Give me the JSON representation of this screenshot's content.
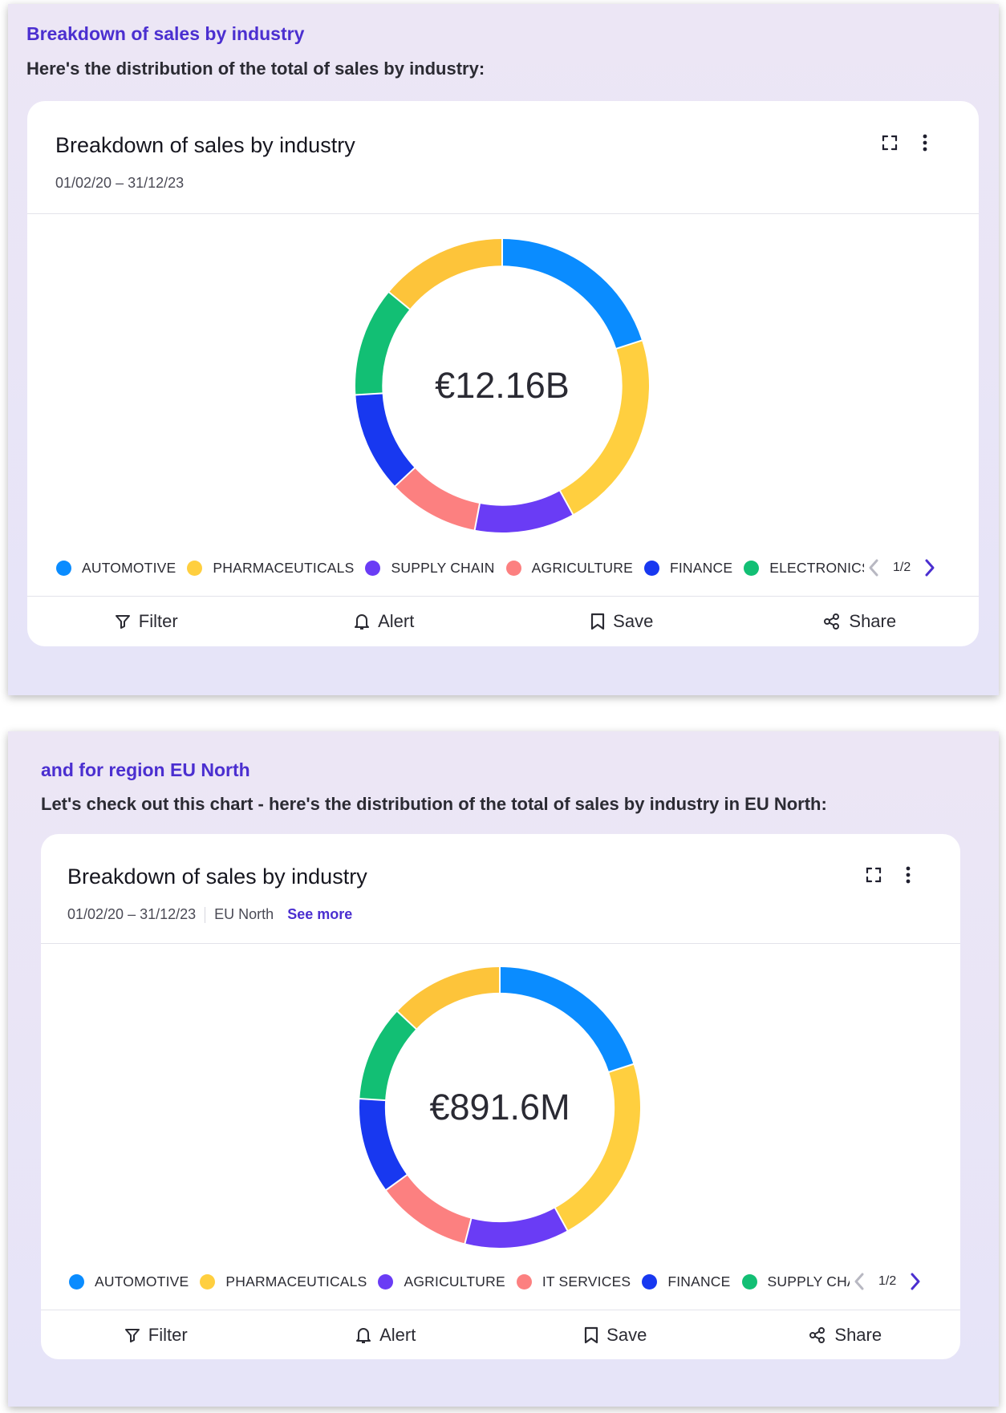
{
  "messages": [
    {
      "heading": "Breakdown of sales by industry",
      "subheading": "Here's the distribution of the total of sales by industry:",
      "card": {
        "title": "Breakdown of sales by industry",
        "date_range": "01/02/20 – 31/12/23",
        "region": "",
        "see_more": "",
        "total_label": "€12.16B",
        "legend": [
          {
            "label": "AUTOMOTIVE",
            "color": "#0a8cff"
          },
          {
            "label": "PHARMACEUTICALS",
            "color": "#ffcf3f"
          },
          {
            "label": "SUPPLY CHAIN",
            "color": "#6a3cf5"
          },
          {
            "label": "AGRICULTURE",
            "color": "#fc8080"
          },
          {
            "label": "FINANCE",
            "color": "#1838f0"
          },
          {
            "label": "ELECTRONICS",
            "color": "#12bf74"
          }
        ],
        "pager": "1/2",
        "actions": {
          "filter": "Filter",
          "alert": "Alert",
          "save": "Save",
          "share": "Share"
        }
      },
      "chart_data": {
        "type": "pie",
        "donut": true,
        "center_label": "€12.16B",
        "slices": [
          {
            "label": "AUTOMOTIVE",
            "value": 20,
            "color": "#0a8cff"
          },
          {
            "label": "PHARMACEUTICALS",
            "value": 22,
            "color": "#ffcf3f"
          },
          {
            "label": "SUPPLY CHAIN",
            "value": 11,
            "color": "#6a3cf5"
          },
          {
            "label": "AGRICULTURE",
            "value": 10,
            "color": "#fc8080"
          },
          {
            "label": "FINANCE",
            "value": 11,
            "color": "#1838f0"
          },
          {
            "label": "ELECTRONICS",
            "value": 12,
            "color": "#12bf74"
          },
          {
            "label": "",
            "value": 14,
            "color": "#fdc43a"
          }
        ]
      }
    },
    {
      "heading": "and for region EU North",
      "subheading": "Let's check out this chart - here's the distribution of the total of sales by industry in EU North:",
      "card": {
        "title": "Breakdown of sales by industry",
        "date_range": "01/02/20 – 31/12/23",
        "region": "EU North",
        "see_more": "See more",
        "total_label": "€891.6M",
        "legend": [
          {
            "label": "AUTOMOTIVE",
            "color": "#0a8cff"
          },
          {
            "label": "PHARMACEUTICALS",
            "color": "#ffcf3f"
          },
          {
            "label": "AGRICULTURE",
            "color": "#6a3cf5"
          },
          {
            "label": "IT SERVICES",
            "color": "#fc8080"
          },
          {
            "label": "FINANCE",
            "color": "#1838f0"
          },
          {
            "label": "SUPPLY CHAIN",
            "color": "#12bf74"
          }
        ],
        "pager": "1/2",
        "actions": {
          "filter": "Filter",
          "alert": "Alert",
          "save": "Save",
          "share": "Share"
        }
      },
      "chart_data": {
        "type": "pie",
        "donut": true,
        "center_label": "€891.6M",
        "slices": [
          {
            "label": "AUTOMOTIVE",
            "value": 20,
            "color": "#0a8cff"
          },
          {
            "label": "PHARMACEUTICALS",
            "value": 22,
            "color": "#ffcf3f"
          },
          {
            "label": "AGRICULTURE",
            "value": 12,
            "color": "#6a3cf5"
          },
          {
            "label": "IT SERVICES",
            "value": 11,
            "color": "#fc8080"
          },
          {
            "label": "FINANCE",
            "value": 11,
            "color": "#1838f0"
          },
          {
            "label": "SUPPLY CHAIN",
            "value": 11,
            "color": "#12bf74"
          },
          {
            "label": "",
            "value": 13,
            "color": "#fdc43a"
          }
        ]
      }
    }
  ]
}
